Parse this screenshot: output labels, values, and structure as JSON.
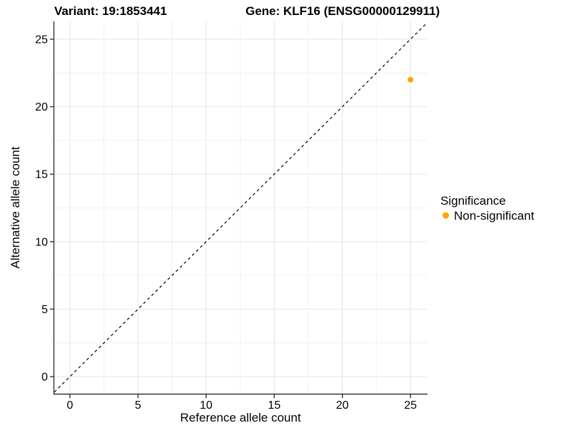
{
  "chart_data": {
    "type": "scatter",
    "titles": [
      "Variant: 19:1853441",
      "Gene: KLF16 (ENSG00000129911)"
    ],
    "xlabel": "Reference allele count",
    "ylabel": "Alternative allele count",
    "x_ticks": [
      0,
      5,
      10,
      15,
      20,
      25
    ],
    "y_ticks": [
      0,
      5,
      10,
      15,
      20,
      25
    ],
    "x_minor_ticks": [
      2.5,
      7.5,
      12.5,
      17.5,
      22.5
    ],
    "y_minor_ticks": [
      2.5,
      7.5,
      12.5,
      17.5,
      22.5
    ],
    "xlim": [
      -1.15,
      26.2
    ],
    "ylim": [
      -1.27,
      26.32
    ],
    "grid": "major+minor on white panel",
    "points": [
      {
        "x": 25,
        "y": 22,
        "series": "Non-significant"
      }
    ],
    "series": [
      {
        "name": "Non-significant",
        "color": "#FFA500"
      }
    ],
    "identity_line": {
      "shown": true,
      "style": "dashed",
      "color": "#000000",
      "slope": 1,
      "intercept": 0
    },
    "legend": {
      "position": "right",
      "title": "Significance",
      "entries": [
        {
          "label": "Non-significant",
          "color": "#FFA500"
        }
      ]
    },
    "colors": {
      "grid_major": "#E4E4E4",
      "grid_minor": "#F0F0F0",
      "axis_line": "#333333",
      "text": "#000000"
    }
  }
}
